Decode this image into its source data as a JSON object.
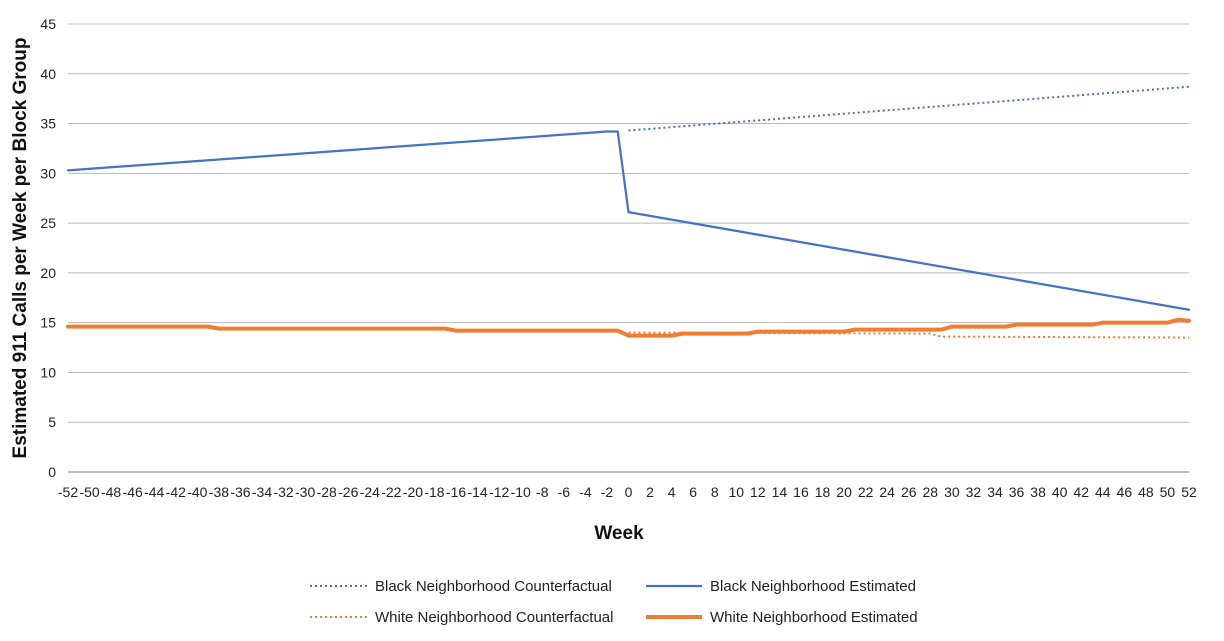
{
  "chart_data": {
    "type": "line",
    "title": "",
    "xlabel": "Week",
    "ylabel": "Estimated 911 Calls per Week per Block Group",
    "xlim": [
      -52,
      52
    ],
    "ylim": [
      0,
      45
    ],
    "x_ticks": [
      -52,
      -50,
      -48,
      -46,
      -44,
      -42,
      -40,
      -38,
      -36,
      -34,
      -32,
      -30,
      -28,
      -26,
      -24,
      -22,
      -20,
      -18,
      -16,
      -14,
      -12,
      -10,
      -8,
      -6,
      -4,
      -2,
      0,
      2,
      4,
      6,
      8,
      10,
      12,
      14,
      16,
      18,
      20,
      22,
      24,
      26,
      28,
      30,
      32,
      34,
      36,
      38,
      40,
      42,
      44,
      46,
      48,
      50,
      52
    ],
    "x_tick_labels": [
      "-52",
      "-50",
      "-48",
      "-46",
      "-44",
      "-42",
      "-40",
      "-38",
      "-36",
      "-34",
      "-32",
      "-30",
      "-28",
      "-26",
      "-24",
      "-22",
      "-20",
      "-18",
      "-16",
      "-14",
      "-12",
      "-10",
      "-8",
      "-6",
      "-4",
      "-2",
      "0",
      "2",
      "4",
      "6",
      "8",
      "10",
      "12",
      "14",
      "16",
      "18",
      "20",
      "22",
      "24",
      "26",
      "28",
      "30",
      "32",
      "34",
      "36",
      "38",
      "40",
      "42",
      "44",
      "46",
      "48",
      "50",
      "52"
    ],
    "y_ticks": [
      0,
      5,
      10,
      15,
      20,
      25,
      30,
      35,
      40,
      45
    ],
    "y_tick_labels": [
      "0",
      "5",
      "10",
      "15",
      "20",
      "25",
      "30",
      "35",
      "40",
      "45"
    ],
    "grid": true,
    "legend_position": "bottom",
    "series": [
      {
        "name": "Black Neighborhood Counterfactual",
        "color": "#4472c4",
        "style": "dotted",
        "x": [
          0,
          52
        ],
        "values": [
          34.3,
          38.7
        ]
      },
      {
        "name": "Black Neighborhood Estimated",
        "color": "#4472c4",
        "style": "solid",
        "x": [
          -52,
          -2,
          -1,
          0,
          52
        ],
        "values": [
          30.3,
          34.2,
          34.2,
          26.1,
          16.3
        ]
      },
      {
        "name": "White Neighborhood Counterfactual",
        "color": "#ed7d31",
        "style": "dotted",
        "x": [
          0,
          28,
          29,
          52
        ],
        "values": [
          14.0,
          13.9,
          13.6,
          13.5
        ]
      },
      {
        "name": "White Neighborhood Estimated",
        "color": "#ed7d31",
        "style": "solid",
        "x": [
          -52,
          -39,
          -38,
          -17,
          -16,
          -1,
          0,
          4,
          5,
          11,
          12,
          20,
          21,
          29,
          30,
          35,
          36,
          43,
          44,
          50,
          51,
          52
        ],
        "values": [
          14.6,
          14.6,
          14.4,
          14.4,
          14.2,
          14.2,
          13.7,
          13.7,
          13.9,
          13.9,
          14.1,
          14.1,
          14.3,
          14.3,
          14.6,
          14.6,
          14.8,
          14.8,
          15.0,
          15.0,
          15.3,
          15.2
        ]
      }
    ]
  }
}
